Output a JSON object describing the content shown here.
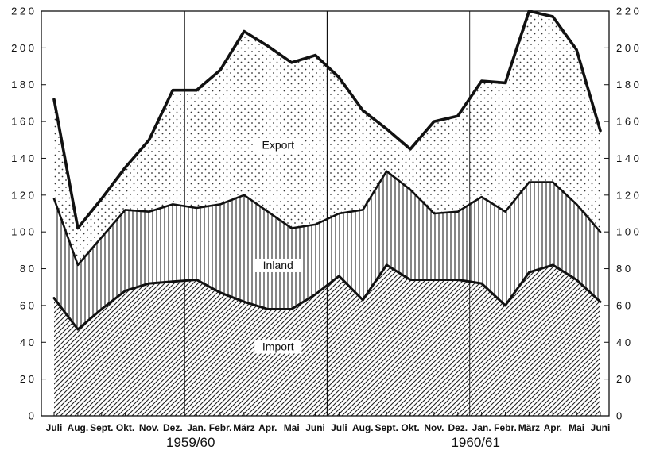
{
  "chart_data": {
    "type": "area",
    "categories": [
      "Juli",
      "Aug.",
      "Sept.",
      "Okt.",
      "Nov.",
      "Dez.",
      "Jan.",
      "Febr.",
      "März",
      "Apr.",
      "Mai",
      "Juni",
      "Juli",
      "Aug.",
      "Sept.",
      "Okt.",
      "Nov.",
      "Dez.",
      "Jan.",
      "Febr.",
      "März",
      "Apr.",
      "Mai",
      "Juni"
    ],
    "period_labels": [
      "1959/60",
      "1960/61"
    ],
    "ylim": [
      0,
      220
    ],
    "yticks": [
      0,
      20,
      40,
      60,
      80,
      100,
      120,
      140,
      160,
      180,
      200,
      220
    ],
    "ytick_labels": [
      "0",
      "2 0",
      "4 0",
      "6 0",
      "8 0",
      "1 0 0",
      "1 2 0",
      "1 4 0",
      "1 6 0",
      "1 8 0",
      "2 0 0",
      "2 2 0"
    ],
    "grid": "vertical quarter lines",
    "stacked": true,
    "series": [
      {
        "name": "Import",
        "pattern": "diagonal-hatch",
        "values": [
          64,
          47,
          58,
          68,
          72,
          73,
          74,
          67,
          62,
          58,
          58,
          66,
          76,
          63,
          82,
          74,
          74,
          74,
          72,
          60,
          78,
          82,
          74,
          62
        ]
      },
      {
        "name": "Inland",
        "pattern": "vertical-lines",
        "values": [
          118,
          82,
          97,
          112,
          111,
          115,
          113,
          115,
          120,
          111,
          102,
          104,
          110,
          112,
          133,
          123,
          110,
          111,
          119,
          111,
          127,
          127,
          115,
          100
        ]
      },
      {
        "name": "Export",
        "pattern": "dots",
        "values": [
          172,
          102,
          118,
          135,
          150,
          177,
          177,
          188,
          209,
          201,
          192,
          196,
          184,
          166,
          156,
          145,
          160,
          163,
          182,
          181,
          220,
          217,
          199,
          155
        ]
      }
    ]
  },
  "style": {
    "line_color": "#111111",
    "background": "#ffffff"
  }
}
